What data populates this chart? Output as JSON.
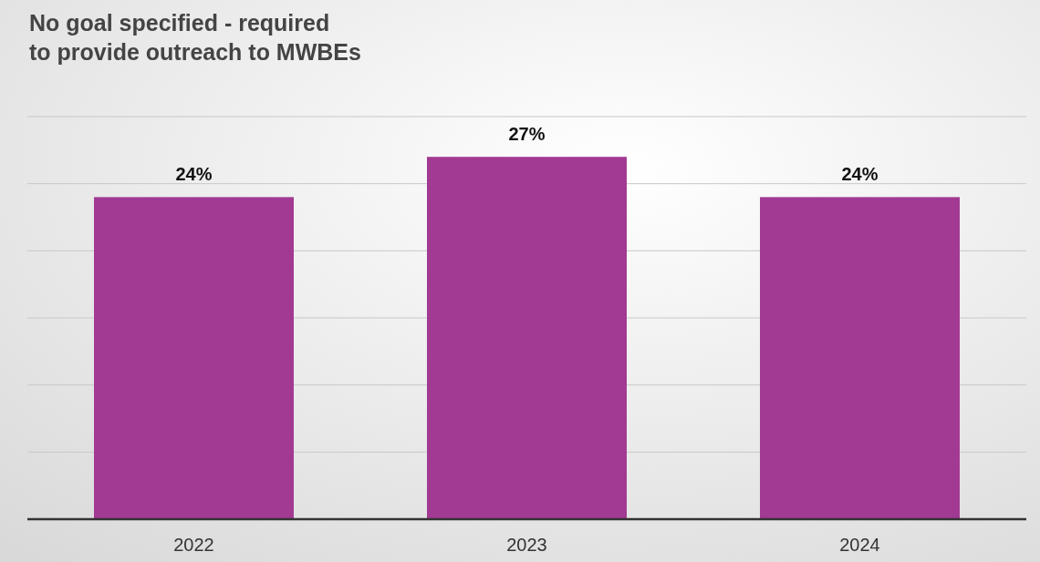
{
  "chart_data": {
    "type": "bar",
    "title": "No goal specified - required\nto provide outreach to MWBEs",
    "categories": [
      "2022",
      "2023",
      "2024"
    ],
    "values": [
      24,
      27,
      24
    ],
    "color": "#a23a93",
    "value_labels": [
      "24%",
      "27%",
      "24%"
    ],
    "ylim": [
      0,
      30
    ],
    "yticks": [
      {
        "value": 0,
        "label": null
      },
      {
        "value": 5,
        "label": null
      },
      {
        "value": 10,
        "label": null
      },
      {
        "value": 15,
        "label": null
      },
      {
        "value": 20,
        "label": null
      },
      {
        "value": 25,
        "label": null
      },
      {
        "value": 30,
        "label": null
      }
    ],
    "grid": "y",
    "tick_labels": "x"
  }
}
